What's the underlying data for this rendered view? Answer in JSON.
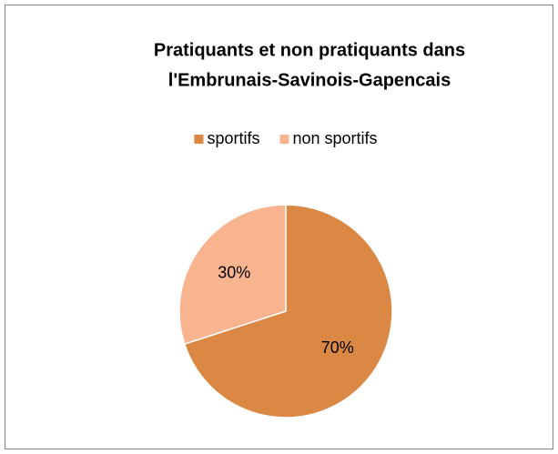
{
  "chart_data": {
    "type": "pie",
    "title": [
      "Pratiquants et non pratiquants dans",
      "l'Embrunais-Savinois-Gapencais"
    ],
    "categories": [
      "sportifs",
      "non sportifs"
    ],
    "values": [
      70,
      30
    ],
    "value_labels": [
      "70%",
      "30%"
    ],
    "colors": [
      "#db8844",
      "#f8b48e"
    ],
    "legend": "top"
  }
}
